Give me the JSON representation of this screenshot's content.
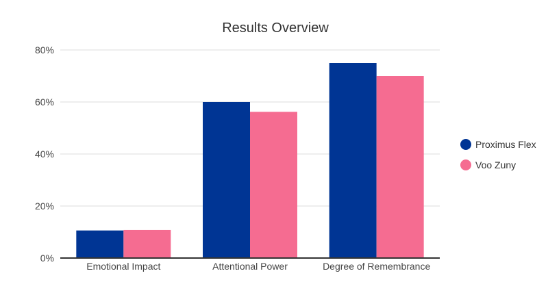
{
  "chart_data": {
    "type": "bar",
    "title": "Results Overview",
    "xlabel": "",
    "ylabel": "",
    "categories": [
      "Emotional Impact",
      "Attentional Power",
      "Degree of Remembrance"
    ],
    "series": [
      {
        "name": "Proximus Flex",
        "color": "#003594",
        "values": [
          10.6,
          60,
          75
        ]
      },
      {
        "name": "Voo Zuny",
        "color": "#F56C91",
        "values": [
          10.8,
          56.2,
          70
        ]
      }
    ],
    "ylim": [
      0,
      80
    ],
    "yticks": [
      "0%",
      "20%",
      "40%",
      "60%",
      "80%"
    ],
    "grid": true,
    "legend_position": "right"
  }
}
